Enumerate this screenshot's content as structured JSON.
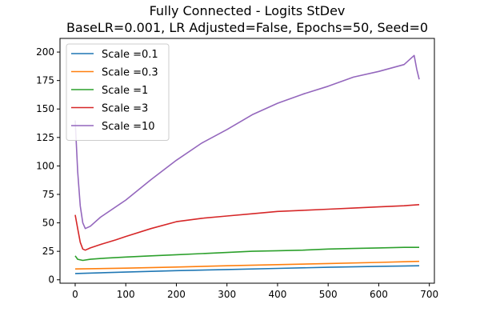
{
  "chart_data": {
    "type": "line",
    "title": "Fully Connected - Logits StDev",
    "subtitle": "BaseLR=0.001, LR Adjusted=False, Epochs=50, Seed=0",
    "xlabel": "",
    "ylabel": "",
    "xlim": [
      -30,
      710
    ],
    "ylim": [
      -3,
      212
    ],
    "x_ticks": [
      0,
      100,
      200,
      300,
      400,
      500,
      600,
      700
    ],
    "y_ticks": [
      0,
      25,
      50,
      75,
      100,
      125,
      150,
      175,
      200
    ],
    "grid": false,
    "legend_position": "top-left",
    "series": [
      {
        "name": "Scale =0.1",
        "color": "#1f77b4",
        "x": [
          0,
          100,
          200,
          300,
          400,
          500,
          600,
          680
        ],
        "y": [
          5.5,
          6.8,
          8.0,
          9.0,
          10.0,
          11.0,
          11.8,
          12.3
        ]
      },
      {
        "name": "Scale =0.3",
        "color": "#ff7f0e",
        "x": [
          0,
          100,
          200,
          300,
          400,
          500,
          600,
          680
        ],
        "y": [
          9.5,
          10.2,
          11.2,
          12.3,
          13.3,
          14.3,
          15.3,
          16.2
        ]
      },
      {
        "name": "Scale =1",
        "color": "#2ca02c",
        "x": [
          0,
          5,
          15,
          30,
          60,
          100,
          150,
          200,
          250,
          300,
          350,
          400,
          450,
          500,
          550,
          600,
          650,
          680
        ],
        "y": [
          21,
          18,
          17,
          18,
          19,
          20,
          21,
          22,
          23,
          24,
          25,
          25.5,
          26,
          27,
          27.5,
          28,
          28.5,
          28.5
        ]
      },
      {
        "name": "Scale =3",
        "color": "#d62728",
        "x": [
          0,
          5,
          10,
          15,
          20,
          30,
          50,
          80,
          100,
          150,
          200,
          250,
          300,
          350,
          400,
          450,
          500,
          550,
          600,
          650,
          680
        ],
        "y": [
          57,
          45,
          33,
          27,
          26,
          28,
          31,
          35,
          38,
          45,
          51,
          54,
          56,
          58,
          60,
          61,
          62,
          63,
          64,
          65,
          66
        ]
      },
      {
        "name": "Scale =10",
        "color": "#9467bd",
        "x": [
          0,
          5,
          10,
          15,
          20,
          30,
          50,
          100,
          150,
          200,
          250,
          300,
          350,
          400,
          450,
          500,
          550,
          600,
          650,
          670,
          675,
          680
        ],
        "y": [
          140,
          95,
          65,
          50,
          45,
          47,
          55,
          70,
          88,
          105,
          120,
          132,
          145,
          155,
          163,
          170,
          178,
          183,
          189,
          197,
          185,
          176
        ]
      }
    ]
  }
}
